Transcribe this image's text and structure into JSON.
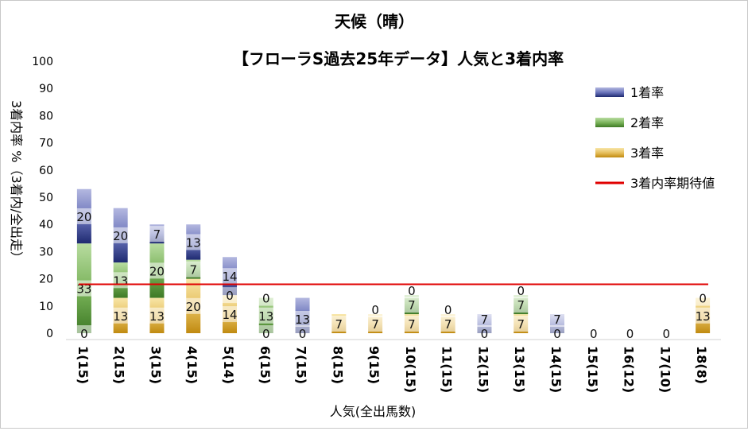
{
  "chart_data": {
    "type": "bar",
    "title": "天候（晴）",
    "subtitle": "【フローラS過去25年データ】人気と3着内率",
    "xlabel": "人気(全出馬数)",
    "ylabel": "3着内率 %（3着内/全出走）",
    "ylim": [
      0,
      100
    ],
    "yticks": [
      0,
      10,
      20,
      30,
      40,
      50,
      60,
      70,
      80,
      90,
      100
    ],
    "stacked": true,
    "categories": [
      "1(15)",
      "2(15)",
      "3(15)",
      "4(15)",
      "5(14)",
      "6(15)",
      "7(15)",
      "8(15)",
      "9(15)",
      "10(15)",
      "11(15)",
      "12(15)",
      "13(15)",
      "14(15)",
      "15(15)",
      "16(12)",
      "17(10)",
      "18(8)"
    ],
    "series": [
      {
        "name": "3着率",
        "values": [
          0,
          13,
          13,
          20,
          14,
          0,
          0,
          7,
          7,
          7,
          7,
          0,
          7,
          0,
          0,
          0,
          0,
          13
        ],
        "color": "#d4a020"
      },
      {
        "name": "2着率",
        "values": [
          33,
          13,
          20,
          7,
          0,
          13,
          0,
          0,
          0,
          7,
          0,
          0,
          7,
          0,
          0,
          0,
          0,
          0
        ],
        "color": "#4a8a30"
      },
      {
        "name": "1着率",
        "values": [
          20,
          20,
          7,
          13,
          14,
          0,
          13,
          0,
          0,
          0,
          0,
          7,
          0,
          7,
          0,
          0,
          0,
          0
        ],
        "color": "#2a3580"
      }
    ],
    "bar_labels": [
      [
        "0",
        "33",
        "20"
      ],
      [
        "13",
        "13",
        "20"
      ],
      [
        "13",
        "20",
        "7"
      ],
      [
        "20",
        "7",
        "13"
      ],
      [
        "14",
        "0",
        "14"
      ],
      [
        "0",
        "13",
        "0"
      ],
      [
        "0",
        "13",
        ""
      ],
      [
        "7",
        "",
        ""
      ],
      [
        "7",
        "0",
        ""
      ],
      [
        "7",
        "7",
        "0"
      ],
      [
        "7",
        "0",
        ""
      ],
      [
        "0",
        "7",
        ""
      ],
      [
        "7",
        "7",
        "0"
      ],
      [
        "0",
        "7",
        ""
      ],
      [
        "0",
        "",
        ""
      ],
      [
        "0",
        "",
        ""
      ],
      [
        "0",
        "",
        ""
      ],
      [
        "13",
        "0",
        ""
      ]
    ],
    "reference_line": {
      "name": "3着内率期待値",
      "value": 18,
      "color": "#e00000"
    },
    "legend": {
      "position": "right",
      "entries": [
        {
          "label": "1着率",
          "color": "#2a3580"
        },
        {
          "label": "2着率",
          "color": "#4a8a30"
        },
        {
          "label": "3着率",
          "color": "#d4a020"
        },
        {
          "label": "3着内率期待値",
          "color": "#e00000"
        }
      ]
    },
    "grid": false
  }
}
